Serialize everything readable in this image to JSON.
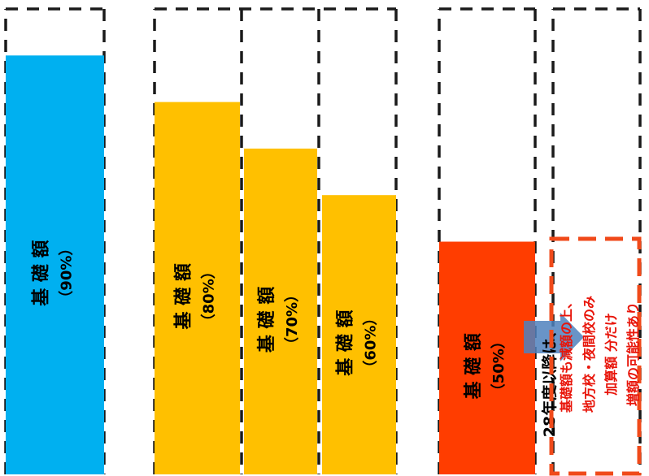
{
  "chart_data": {
    "type": "bar",
    "ylim": [
      0,
      100
    ],
    "grid": false,
    "bars": [
      {
        "base_label": "基 礎 額",
        "pct_label": "（90%）",
        "value": 90,
        "color": "#00b0f0"
      },
      {
        "base_label": "基 礎 額",
        "pct_label": "（80%）",
        "value": 80,
        "color": "#ffc000"
      },
      {
        "base_label": "基 礎 額",
        "pct_label": "（70%）",
        "value": 70,
        "color": "#ffc000"
      },
      {
        "base_label": "基 礎 額",
        "pct_label": "（60%）",
        "value": 60,
        "color": "#ffc000"
      },
      {
        "base_label": "基 礎 額",
        "pct_label": "（50%）",
        "value": 50,
        "color": "#ff3d00"
      }
    ],
    "arrow_label": "28年度以降は、",
    "note_lines": [
      "基礎額も減額の上、",
      "地方校・夜間校のみ",
      "加算額 分だけ",
      "増額の可能性あり"
    ],
    "colors": {
      "outline": "#1a1a1a",
      "arrow": "#4f81bd",
      "note_border": "#f04a1a",
      "note_text": "#e8150a"
    }
  }
}
